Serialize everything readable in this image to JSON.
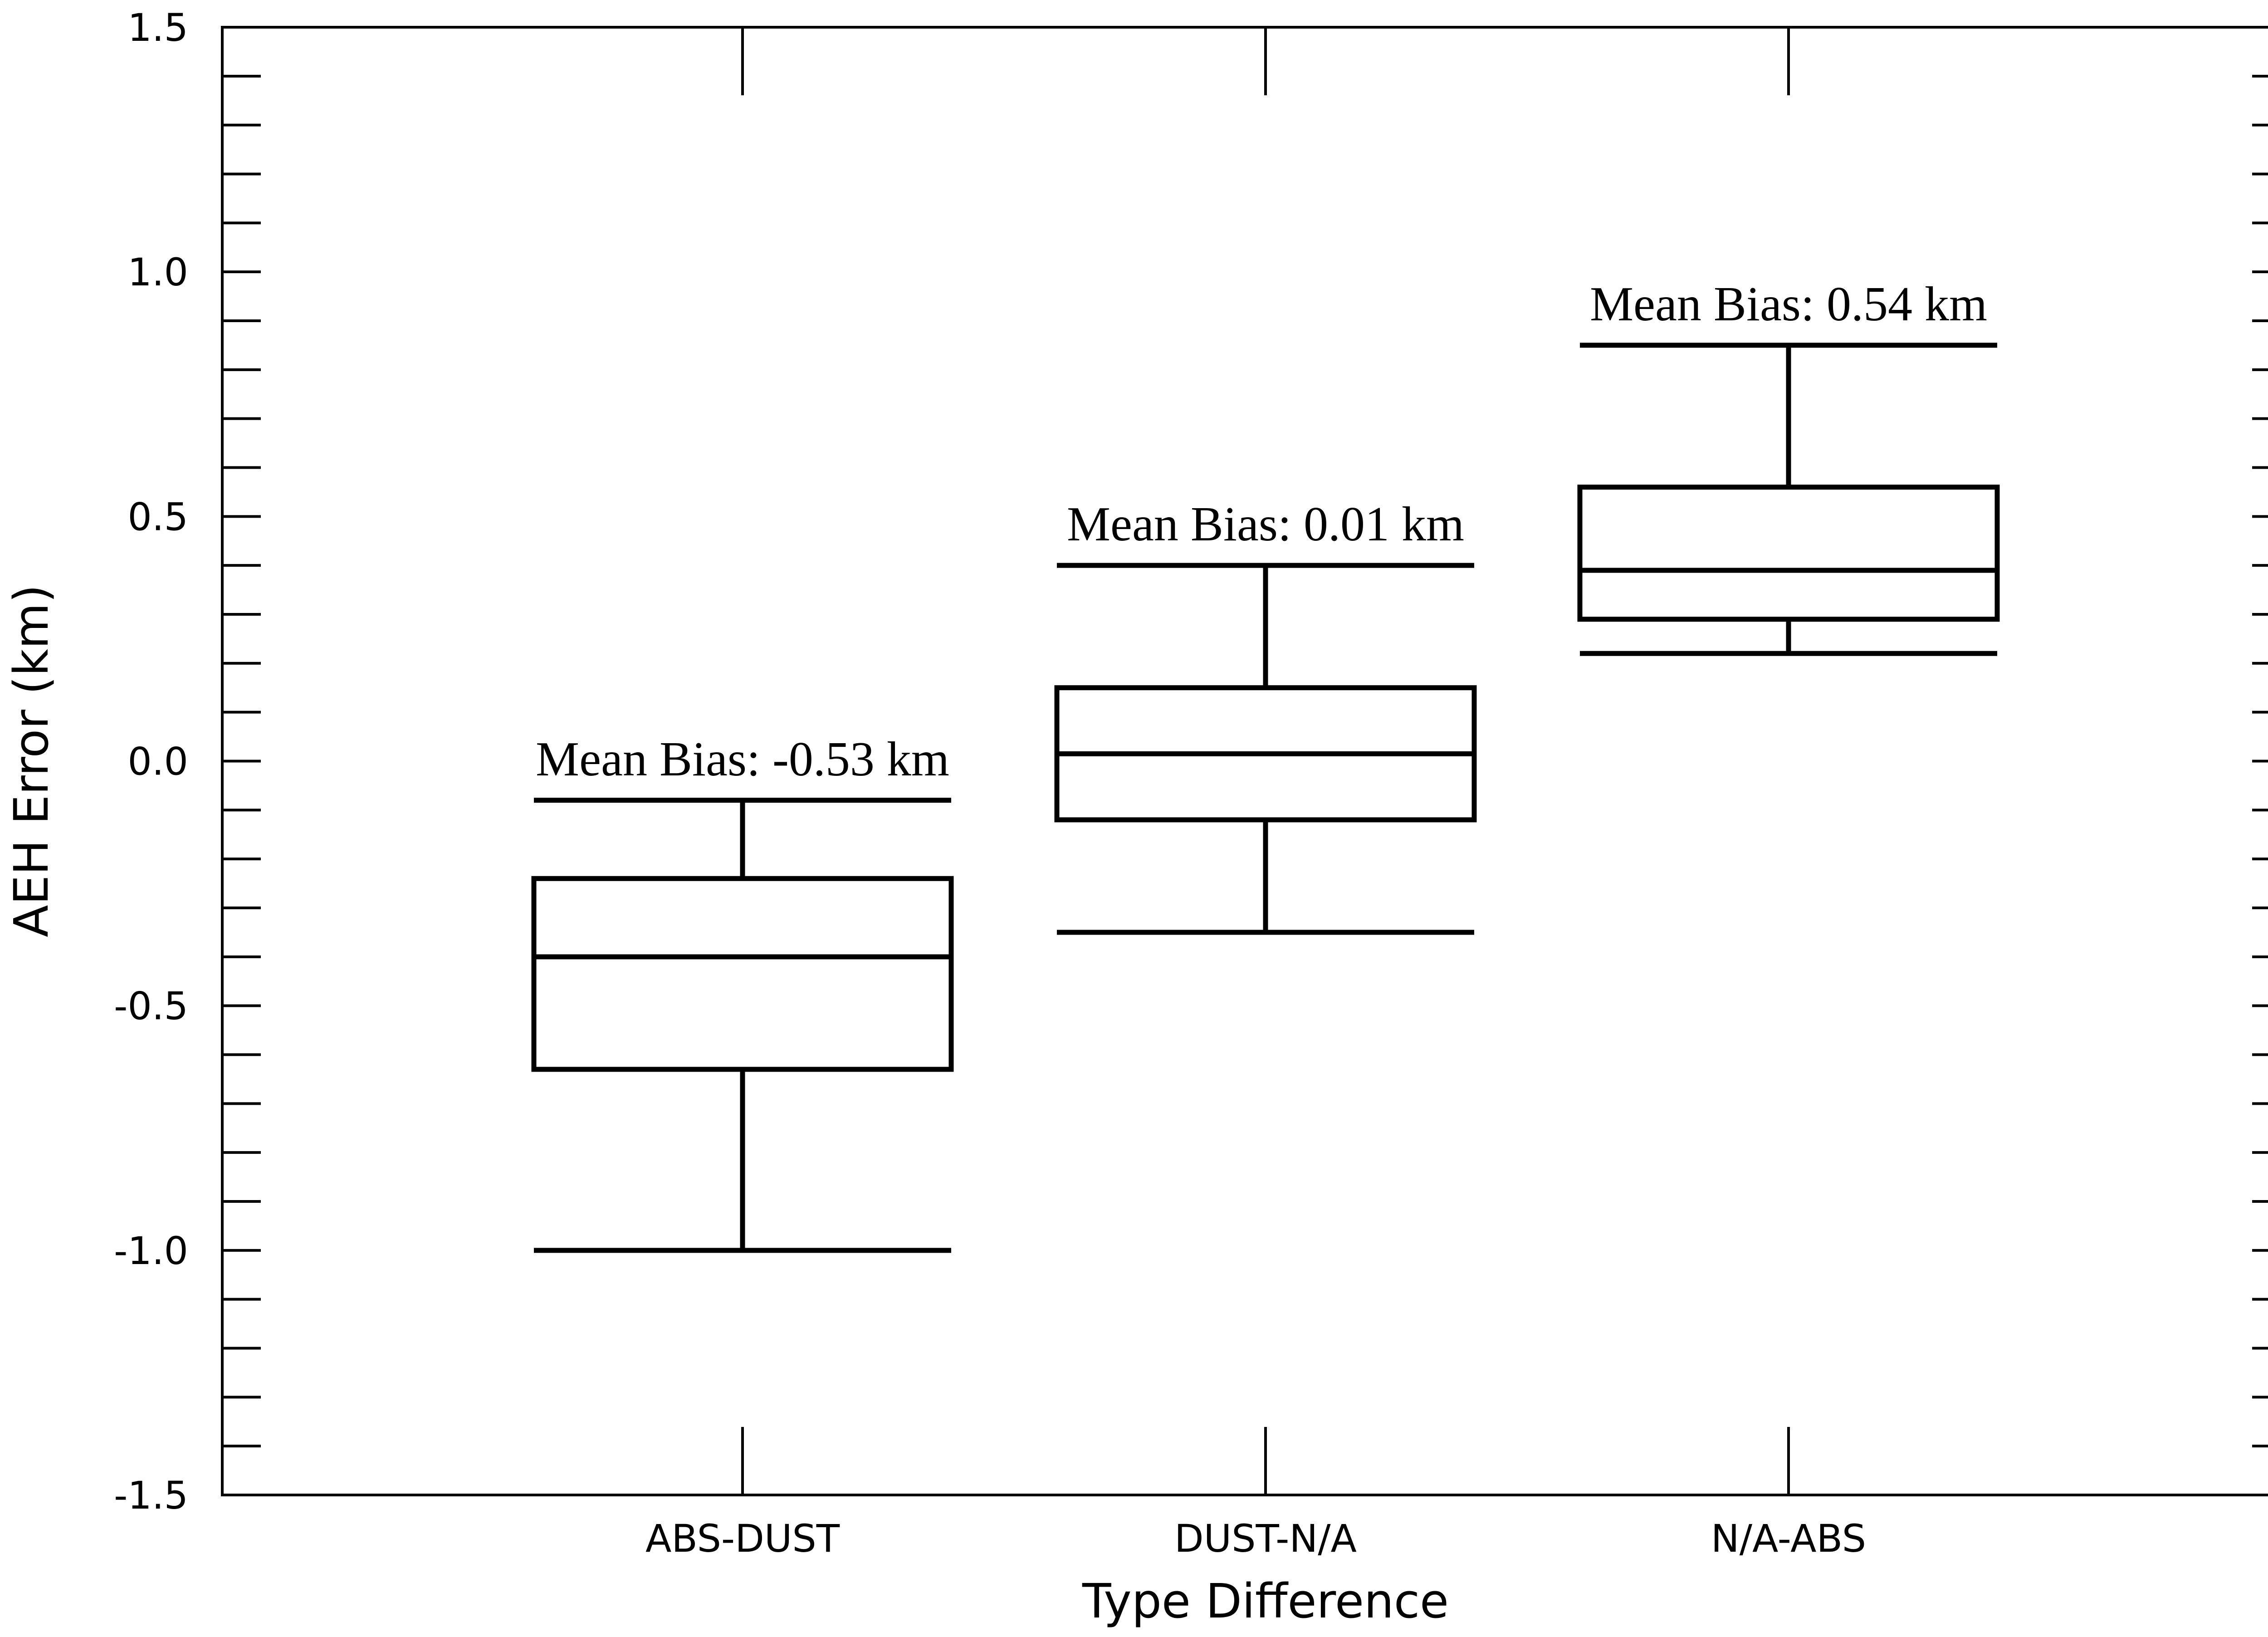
{
  "chart_data": {
    "type": "box",
    "title": "",
    "xlabel": "Type Difference",
    "ylabel": "AEH Error (km)",
    "ylim": [
      -1.5,
      1.5
    ],
    "y_ticks": [
      "1.5",
      "1.0",
      "0.5",
      "0.0",
      "-0.5",
      "-1.0",
      "-1.5"
    ],
    "y_tick_values": [
      1.5,
      1.0,
      0.5,
      0.0,
      -0.5,
      -1.0,
      -1.5
    ],
    "y_minor_step": 0.1,
    "categories": [
      "ABS-DUST",
      "DUST-N/A",
      "N/A-ABS"
    ],
    "boxes": [
      {
        "category": "ABS-DUST",
        "whisker_low": -1.0,
        "q1": -0.63,
        "median": -0.4,
        "q3": -0.24,
        "whisker_high": -0.08,
        "annotation": "Mean Bias: -0.53 km"
      },
      {
        "category": "DUST-N/A",
        "whisker_low": -0.35,
        "q1": -0.12,
        "median": 0.015,
        "q3": 0.15,
        "whisker_high": 0.4,
        "annotation": "Mean Bias: 0.01 km"
      },
      {
        "category": "N/A-ABS",
        "whisker_low": 0.22,
        "q1": 0.29,
        "median": 0.39,
        "q3": 0.56,
        "whisker_high": 0.85,
        "annotation": "Mean Bias: 0.54 km"
      }
    ],
    "grid": false,
    "legend": "none"
  }
}
